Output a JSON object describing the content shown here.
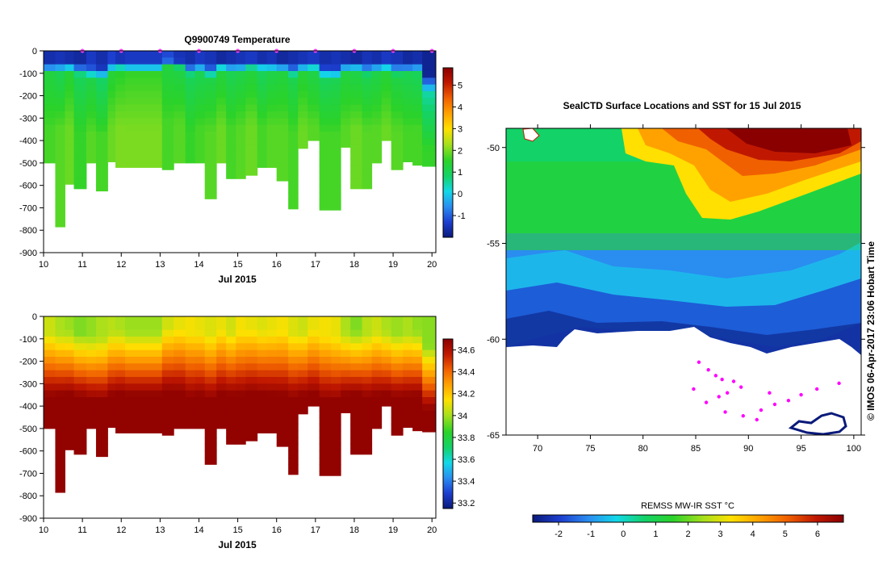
{
  "chart_data": [
    {
      "type": "heatmap",
      "title": "Q9900749  Temperature",
      "xlabel": "Jul 2015",
      "x_ticks": [
        "10",
        "11",
        "12",
        "13",
        "14",
        "15",
        "16",
        "17",
        "18",
        "19",
        "20"
      ],
      "xlim": [
        10,
        20.1
      ],
      "ylim": [
        -900,
        0
      ],
      "y_ticks": [
        "0",
        "-100",
        "-200",
        "-300",
        "-400",
        "-500",
        "-600",
        "-700",
        "-800",
        "-900"
      ],
      "colorbar": {
        "min": -2,
        "max": 5.8,
        "ticks": [
          "5",
          "4",
          "3",
          "2",
          "1",
          "0",
          "-1"
        ]
      },
      "colormap": [
        "#0a1a7a",
        "#1d3fd0",
        "#2a8df0",
        "#12d8e8",
        "#13d268",
        "#2ad22a",
        "#a8e01c",
        "#ffe000",
        "#ffa200",
        "#f06000",
        "#c01800",
        "#8a0000"
      ],
      "profiles": [
        {
          "t": 10.0,
          "d": 500,
          "mix": 105,
          "top": -1.6,
          "sub": 1.3,
          "deep": 1.7
        },
        {
          "t": 10.3,
          "d": 785,
          "mix": 100,
          "top": -1.5,
          "sub": 1.1,
          "deep": 1.8
        },
        {
          "t": 10.55,
          "d": 595,
          "mix": 95,
          "top": -1.6,
          "sub": 1.4,
          "deep": 1.9
        },
        {
          "t": 10.78,
          "d": 615,
          "mix": 110,
          "top": -1.7,
          "sub": 1.0,
          "deep": 1.6
        },
        {
          "t": 11.1,
          "d": 500,
          "mix": 125,
          "top": -1.4,
          "sub": 1.2,
          "deep": 1.8
        },
        {
          "t": 11.35,
          "d": 625,
          "mix": 130,
          "top": -1.6,
          "sub": 0.9,
          "deep": 1.7
        },
        {
          "t": 11.65,
          "d": 495,
          "mix": 100,
          "top": -1.3,
          "sub": 1.4,
          "deep": 1.9
        },
        {
          "t": 11.85,
          "d": 520,
          "mix": 90,
          "top": -1.5,
          "sub": 1.5,
          "deep": 2.0
        },
        {
          "t": 12.1,
          "d": 520,
          "mix": 100,
          "top": -1.4,
          "sub": 1.6,
          "deep": 2.0
        },
        {
          "t": 13.05,
          "d": 530,
          "mix": 75,
          "top": -1.2,
          "sub": 1.3,
          "deep": 1.7
        },
        {
          "t": 13.35,
          "d": 500,
          "mix": 80,
          "top": -1.5,
          "sub": 1.2,
          "deep": 1.8
        },
        {
          "t": 13.65,
          "d": 500,
          "mix": 110,
          "top": -1.6,
          "sub": 1.0,
          "deep": 1.6
        },
        {
          "t": 13.9,
          "d": 500,
          "mix": 100,
          "top": -1.4,
          "sub": 1.1,
          "deep": 1.7
        },
        {
          "t": 14.15,
          "d": 660,
          "mix": 120,
          "top": -1.5,
          "sub": 1.2,
          "deep": 1.8
        },
        {
          "t": 14.45,
          "d": 500,
          "mix": 90,
          "top": -1.7,
          "sub": 1.3,
          "deep": 1.9
        },
        {
          "t": 14.7,
          "d": 570,
          "mix": 100,
          "top": -1.6,
          "sub": 1.1,
          "deep": 1.7
        },
        {
          "t": 14.95,
          "d": 570,
          "mix": 100,
          "top": -1.5,
          "sub": 1.2,
          "deep": 1.8
        },
        {
          "t": 15.2,
          "d": 555,
          "mix": 85,
          "top": -1.4,
          "sub": 1.3,
          "deep": 1.9
        },
        {
          "t": 15.5,
          "d": 520,
          "mix": 90,
          "top": -1.6,
          "sub": 1.0,
          "deep": 1.7
        },
        {
          "t": 15.75,
          "d": 520,
          "mix": 95,
          "top": -1.5,
          "sub": 1.2,
          "deep": 1.8
        },
        {
          "t": 16.0,
          "d": 580,
          "mix": 100,
          "top": -1.7,
          "sub": 1.3,
          "deep": 1.8
        },
        {
          "t": 16.3,
          "d": 705,
          "mix": 115,
          "top": -1.6,
          "sub": 1.1,
          "deep": 1.7
        },
        {
          "t": 16.55,
          "d": 435,
          "mix": 100,
          "top": -1.5,
          "sub": 1.4,
          "deep": 1.9
        },
        {
          "t": 16.8,
          "d": 400,
          "mix": 90,
          "top": -1.4,
          "sub": 1.2,
          "deep": 1.8
        },
        {
          "t": 17.1,
          "d": 710,
          "mix": 125,
          "top": -1.6,
          "sub": 1.0,
          "deep": 1.7
        },
        {
          "t": 17.4,
          "d": 710,
          "mix": 130,
          "top": -1.5,
          "sub": 1.1,
          "deep": 1.7
        },
        {
          "t": 17.65,
          "d": 430,
          "mix": 100,
          "top": -1.6,
          "sub": 1.3,
          "deep": 1.8
        },
        {
          "t": 17.9,
          "d": 615,
          "mix": 95,
          "top": -1.7,
          "sub": 1.2,
          "deep": 1.9
        },
        {
          "t": 18.2,
          "d": 615,
          "mix": 110,
          "top": -1.5,
          "sub": 1.1,
          "deep": 1.8
        },
        {
          "t": 18.45,
          "d": 500,
          "mix": 100,
          "top": -1.6,
          "sub": 1.2,
          "deep": 1.8
        },
        {
          "t": 18.7,
          "d": 400,
          "mix": 95,
          "top": -1.4,
          "sub": 1.4,
          "deep": 1.9
        },
        {
          "t": 18.95,
          "d": 530,
          "mix": 110,
          "top": -1.5,
          "sub": 1.2,
          "deep": 1.8
        },
        {
          "t": 19.25,
          "d": 495,
          "mix": 105,
          "top": -1.7,
          "sub": 1.1,
          "deep": 1.7
        },
        {
          "t": 19.5,
          "d": 510,
          "mix": 100,
          "top": -1.6,
          "sub": 1.0,
          "deep": 1.7
        },
        {
          "t": 19.75,
          "d": 515,
          "mix": 190,
          "top": -1.8,
          "sub": 0.5,
          "deep": 1.6
        }
      ]
    },
    {
      "type": "heatmap",
      "title": "",
      "xlabel": "Jul 2015",
      "x_ticks": [
        "10",
        "11",
        "12",
        "13",
        "14",
        "15",
        "16",
        "17",
        "18",
        "19",
        "20"
      ],
      "xlim": [
        10,
        20.1
      ],
      "ylim": [
        -900,
        0
      ],
      "y_ticks": [
        "0",
        "-100",
        "-200",
        "-300",
        "-400",
        "-500",
        "-600",
        "-700",
        "-800",
        "-900"
      ],
      "colorbar": {
        "min": 33.15,
        "max": 34.7,
        "ticks": [
          "34.6",
          "34.4",
          "34.2",
          "34",
          "33.8",
          "33.6",
          "33.4",
          "33.2"
        ]
      },
      "colormap": [
        "#0a1a7a",
        "#1d3fd0",
        "#2a8df0",
        "#12d8e8",
        "#13d268",
        "#2ad22a",
        "#a8e01c",
        "#ffe000",
        "#ffa200",
        "#f06000",
        "#c01800",
        "#8a0000"
      ],
      "surface_salinity": [
        34.05,
        34.0,
        33.98,
        33.95,
        33.97,
        34.0,
        34.02,
        34.0,
        33.98,
        34.06,
        34.1,
        34.12,
        34.1,
        34.08,
        34.1,
        34.06,
        34.12,
        34.1,
        34.08,
        34.1,
        34.12,
        34.08,
        34.05,
        34.1,
        34.12,
        34.1,
        34.0,
        33.95,
        34.02,
        34.05,
        34.0,
        33.98,
        34.0,
        33.97,
        33.96
      ],
      "deep_salinity": 34.68
    },
    {
      "type": "heatmap",
      "title": "SealCTD Surface Locations and SST for 15 Jul 2015",
      "x_ticks": [
        "70",
        "75",
        "80",
        "85",
        "90",
        "95",
        "100"
      ],
      "y_ticks": [
        "-50",
        "-55",
        "-60",
        "-65"
      ],
      "xlim": [
        67,
        100.7
      ],
      "ylim": [
        -65,
        -49
      ],
      "colorbar_label": "REMSS MW-IR SST °C",
      "colorbar": {
        "min": -2.8,
        "max": 6.8,
        "ticks": [
          "-2",
          "-1",
          "0",
          "1",
          "2",
          "3",
          "4",
          "5",
          "6"
        ]
      },
      "colormap": [
        "#0a1a7a",
        "#1d3fd0",
        "#2a8df0",
        "#12d8e8",
        "#13d268",
        "#2ad22a",
        "#a8e01c",
        "#ffe000",
        "#ffa200",
        "#f06000",
        "#c01800",
        "#8a0000"
      ],
      "ice_edge_lat": -60.6,
      "seal_locations": [
        {
          "lon": 86.2,
          "lat": -61.6
        },
        {
          "lon": 86.9,
          "lat": -61.9
        },
        {
          "lon": 87.5,
          "lat": -62.1
        },
        {
          "lon": 88.6,
          "lat": -62.2
        },
        {
          "lon": 89.3,
          "lat": -62.5
        },
        {
          "lon": 88.0,
          "lat": -62.8
        },
        {
          "lon": 87.2,
          "lat": -63.0
        },
        {
          "lon": 86.0,
          "lat": -63.3
        },
        {
          "lon": 87.8,
          "lat": -63.8
        },
        {
          "lon": 89.5,
          "lat": -64.0
        },
        {
          "lon": 91.2,
          "lat": -63.7
        },
        {
          "lon": 92.5,
          "lat": -63.4
        },
        {
          "lon": 93.8,
          "lat": -63.2
        },
        {
          "lon": 95.0,
          "lat": -62.9
        },
        {
          "lon": 96.5,
          "lat": -62.6
        },
        {
          "lon": 98.6,
          "lat": -62.3
        },
        {
          "lon": 85.3,
          "lat": -61.2
        },
        {
          "lon": 90.8,
          "lat": -64.2
        },
        {
          "lon": 84.8,
          "lat": -62.6
        },
        {
          "lon": 92.0,
          "lat": -62.8
        }
      ]
    }
  ],
  "credit": "©  IMOS 06-Apr-2017 23:06 Hobart Time",
  "colors": {
    "ice": "#ffffff",
    "track": "#ff00ff",
    "axis": "#000000"
  }
}
